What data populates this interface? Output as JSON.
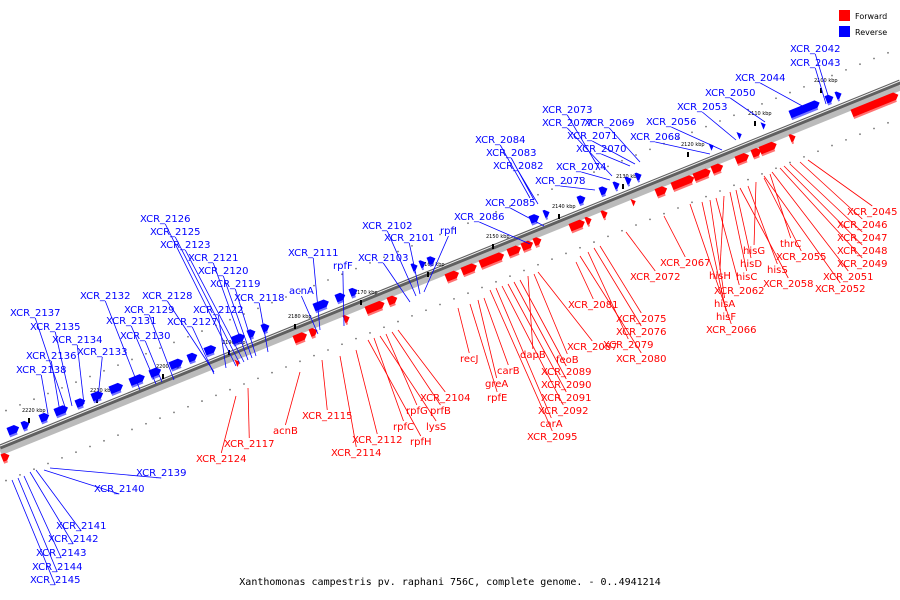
{
  "title": "Xanthomonas campestris pv. raphani 756C, complete genome. - 0..4941214",
  "legend": [
    {
      "label": "Forward",
      "color": "#ff0000"
    },
    {
      "label": "Reverse",
      "color": "#0000ff"
    }
  ],
  "colors": {
    "forward": "#ff0000",
    "reverse": "#0000ff",
    "axis": "#555555"
  },
  "scale_ticks": [
    "2100 kbp",
    "2110 kbp",
    "2120 kbp",
    "2130 kbp",
    "2140 kbp",
    "2150 kbp",
    "2160 kbp",
    "2170 kbp",
    "2180 kbp",
    "2190 kbp",
    "2200 kbp",
    "2210 kbp",
    "2220 kbp"
  ],
  "reverse_labels": [
    "XCR_2042",
    "XCR_2043",
    "XCR_2044",
    "XCR_2050",
    "XCR_2053",
    "XCR_2056",
    "XCR_2068",
    "XCR_2069",
    "XCR_2071",
    "XCR_2070",
    "XCR_2073",
    "XCR_2077",
    "XCR_2074",
    "XCR_2078",
    "XCR_2084",
    "XCR_2083",
    "XCR_2082",
    "XCR_2085",
    "XCR_2086",
    "rpfI",
    "XCR_2102",
    "XCR_2101",
    "XCR_2103",
    "XCR_2111",
    "rpfF",
    "acnA",
    "XCR_2126",
    "XCR_2125",
    "XCR_2123",
    "XCR_2121",
    "XCR_2120",
    "XCR_2119",
    "XCR_2118",
    "XCR_2122",
    "XCR_2128",
    "XCR_2127",
    "XCR_2132",
    "XCR_2129",
    "XCR_2131",
    "XCR_2130",
    "XCR_2137",
    "XCR_2135",
    "XCR_2134",
    "XCR_2133",
    "XCR_2136",
    "XCR_2138",
    "XCR_2139",
    "XCR_2140",
    "XCR_2141",
    "XCR_2142",
    "XCR_2143",
    "XCR_2144",
    "XCR_2145"
  ],
  "forward_labels": [
    "XCR_2045",
    "XCR_2046",
    "XCR_2047",
    "XCR_2048",
    "XCR_2049",
    "XCR_2051",
    "XCR_2052",
    "thrC",
    "XCR_2055",
    "hisG",
    "hisS",
    "XCR_2058",
    "hisD",
    "hisC",
    "hisH",
    "XCR_2062",
    "hisA",
    "hisF",
    "XCR_2066",
    "XCR_2067",
    "XCR_2072",
    "XCR_2075",
    "XCR_2076",
    "XCR_2079",
    "XCR_2080",
    "XCR_2081",
    "XCR_2087",
    "feoB",
    "dapB",
    "XCR_2089",
    "XCR_2090",
    "XCR_2091",
    "XCR_2092",
    "carA",
    "XCR_2095",
    "carB",
    "greA",
    "rpfE",
    "recJ",
    "XCR_2104",
    "prfB",
    "rpfG",
    "lysS",
    "rpfC",
    "rpfH",
    "XCR_2112",
    "XCR_2114",
    "XCR_2115",
    "acnB",
    "XCR_2117",
    "XCR_2124"
  ]
}
